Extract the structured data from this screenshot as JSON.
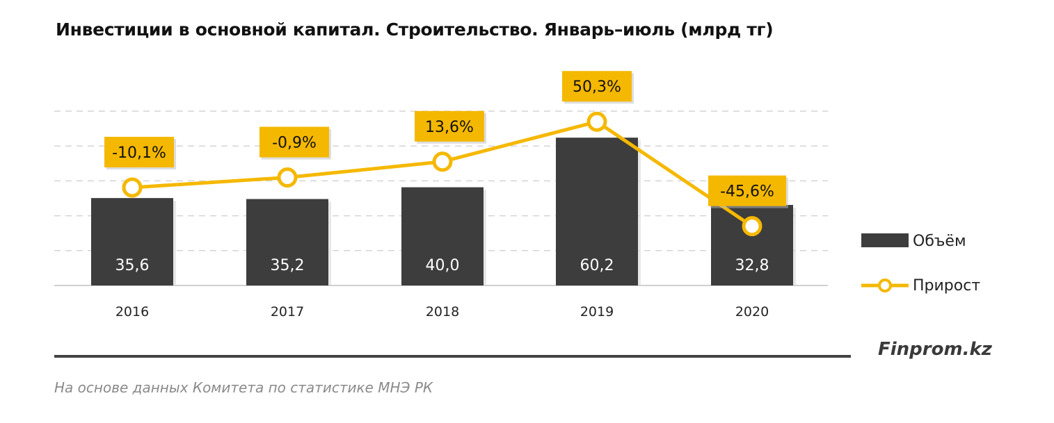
{
  "title": "Инвестиции в основной капитал. Строительство. Январь–июль (млрд тг)",
  "brand": "Finprom.kz",
  "source": "На основе данных  Комитета по статистике МНЭ РК",
  "colors": {
    "bar": "#3d3d3d",
    "line": "#f5b800",
    "label_bg": "#f5b800",
    "grid": "#d4d4d4"
  },
  "chart_data": {
    "type": "bar+line",
    "title": "Инвестиции в основной капитал. Строительство. Январь–июль (млрд тг)",
    "categories": [
      "2016",
      "2017",
      "2018",
      "2019",
      "2020"
    ],
    "series": [
      {
        "name": "Объём",
        "type": "bar",
        "axis": "primary",
        "values": [
          35.6,
          35.2,
          40.0,
          60.2,
          32.8
        ],
        "labels": [
          "35,6",
          "35,2",
          "40,0",
          "60,2",
          "32,8"
        ]
      },
      {
        "name": "Прирост",
        "type": "line",
        "axis": "secondary",
        "values": [
          -10.1,
          -0.9,
          13.6,
          50.3,
          -45.6
        ],
        "labels": [
          "-10,1%",
          "-0,9%",
          "13,6%",
          "50,3%",
          "-45,6%"
        ]
      }
    ],
    "primary_ylim": [
      0,
      71
    ],
    "secondary_ylim": [
      -100,
      60
    ],
    "grid": true,
    "axes_visible": false,
    "legend": "right"
  }
}
